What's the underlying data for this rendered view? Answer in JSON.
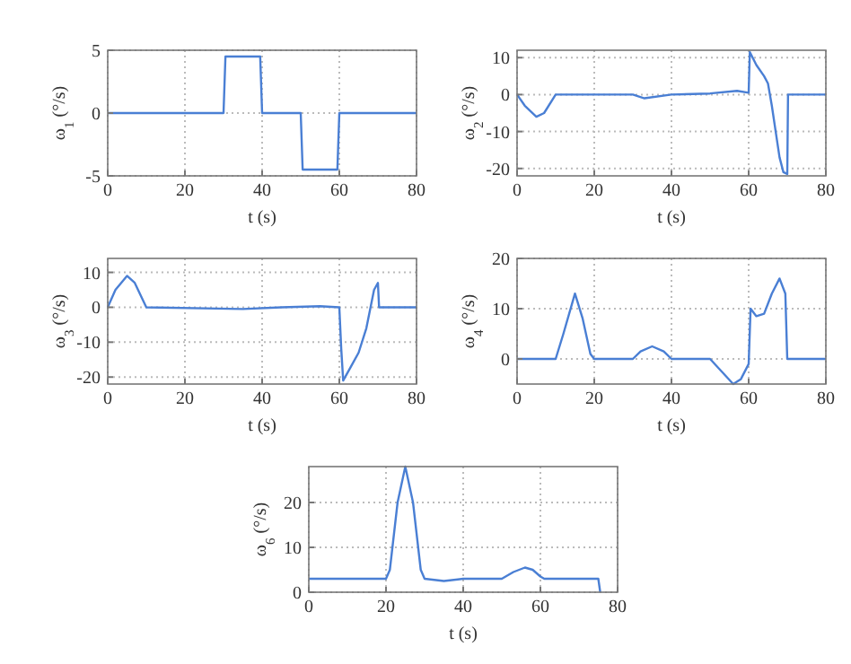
{
  "chart_data": [
    {
      "type": "line",
      "xlabel": "t (s)",
      "ylabel": "ω$_{1}$ (°/s)",
      "xlim": [
        0,
        80
      ],
      "xticks": [
        0,
        20,
        40,
        60,
        80
      ],
      "ylim": [
        -5,
        5
      ],
      "yticks": [
        -5,
        0,
        5
      ],
      "grid": true,
      "color": "#4a7fd4",
      "x": [
        0,
        30,
        30.5,
        39.5,
        40,
        50,
        50.5,
        59.5,
        60,
        80
      ],
      "values": [
        0,
        0,
        4.5,
        4.5,
        0,
        0,
        -4.5,
        -4.5,
        0,
        0
      ]
    },
    {
      "type": "line",
      "xlabel": "t (s)",
      "ylabel": "ω$_{2}$ (°/s)",
      "xlim": [
        0,
        80
      ],
      "xticks": [
        0,
        20,
        40,
        60,
        80
      ],
      "ylim": [
        -22,
        12
      ],
      "yticks": [
        -20,
        -10,
        0,
        10
      ],
      "grid": true,
      "color": "#4a7fd4",
      "x": [
        0,
        2,
        5,
        7,
        10,
        30,
        33,
        40,
        50,
        57,
        60,
        60.3,
        62,
        64,
        65,
        66,
        67,
        68,
        69,
        70,
        70.2,
        80
      ],
      "values": [
        0,
        -3,
        -6,
        -5,
        0,
        0,
        -1,
        0,
        0.3,
        1,
        0.5,
        11.5,
        8,
        5,
        3,
        -3,
        -10,
        -17,
        -21,
        -21.5,
        0,
        0
      ]
    },
    {
      "type": "line",
      "xlabel": "t (s)",
      "ylabel": "ω$_{3}$ (°/s)",
      "xlim": [
        0,
        80
      ],
      "xticks": [
        0,
        20,
        40,
        60,
        80
      ],
      "ylim": [
        -22,
        14
      ],
      "yticks": [
        -20,
        -10,
        0,
        10
      ],
      "grid": true,
      "color": "#4a7fd4",
      "x": [
        0,
        2,
        5,
        7,
        10,
        35,
        45,
        55,
        60,
        60.5,
        61,
        63,
        65,
        67,
        69,
        70,
        70.3,
        80
      ],
      "values": [
        0,
        5,
        9,
        7,
        0,
        -0.5,
        0,
        0.3,
        0,
        -12,
        -21,
        -17,
        -13,
        -6,
        5,
        7,
        0,
        0
      ]
    },
    {
      "type": "line",
      "xlabel": "t (s)",
      "ylabel": "ω$_{4}$ (°/s)",
      "xlim": [
        0,
        80
      ],
      "xticks": [
        0,
        20,
        40,
        60,
        80
      ],
      "ylim": [
        -5,
        20
      ],
      "yticks": [
        0,
        10,
        20
      ],
      "grid": true,
      "color": "#4a7fd4",
      "x": [
        0,
        10,
        12,
        15,
        17,
        19,
        20,
        30,
        32,
        35,
        38,
        40,
        50,
        53,
        56,
        58,
        60,
        60.5,
        62,
        64,
        66,
        68,
        69.5,
        70,
        80
      ],
      "values": [
        0,
        0,
        5,
        13,
        8,
        1,
        0,
        0,
        1.5,
        2.5,
        1.5,
        0,
        0,
        -2.5,
        -5,
        -4,
        -1,
        10,
        8.5,
        9,
        13,
        16,
        13,
        0,
        0
      ]
    },
    {
      "type": "line",
      "xlabel": "t (s)",
      "ylabel": "ω$_{6}$ (°/s)",
      "xlim": [
        0,
        80
      ],
      "xticks": [
        0,
        20,
        40,
        60,
        80
      ],
      "ylim": [
        0,
        28
      ],
      "yticks": [
        0,
        10,
        20
      ],
      "grid": true,
      "color": "#4a7fd4",
      "x": [
        0,
        20,
        21,
        23,
        25,
        27,
        29,
        30,
        35,
        40,
        50,
        53,
        56,
        58,
        60,
        61,
        75,
        75.5
      ],
      "values": [
        3,
        3,
        5,
        20,
        28,
        20,
        5,
        3,
        2.5,
        3,
        3,
        4.5,
        5.5,
        5,
        3.5,
        3,
        3,
        0
      ]
    }
  ]
}
